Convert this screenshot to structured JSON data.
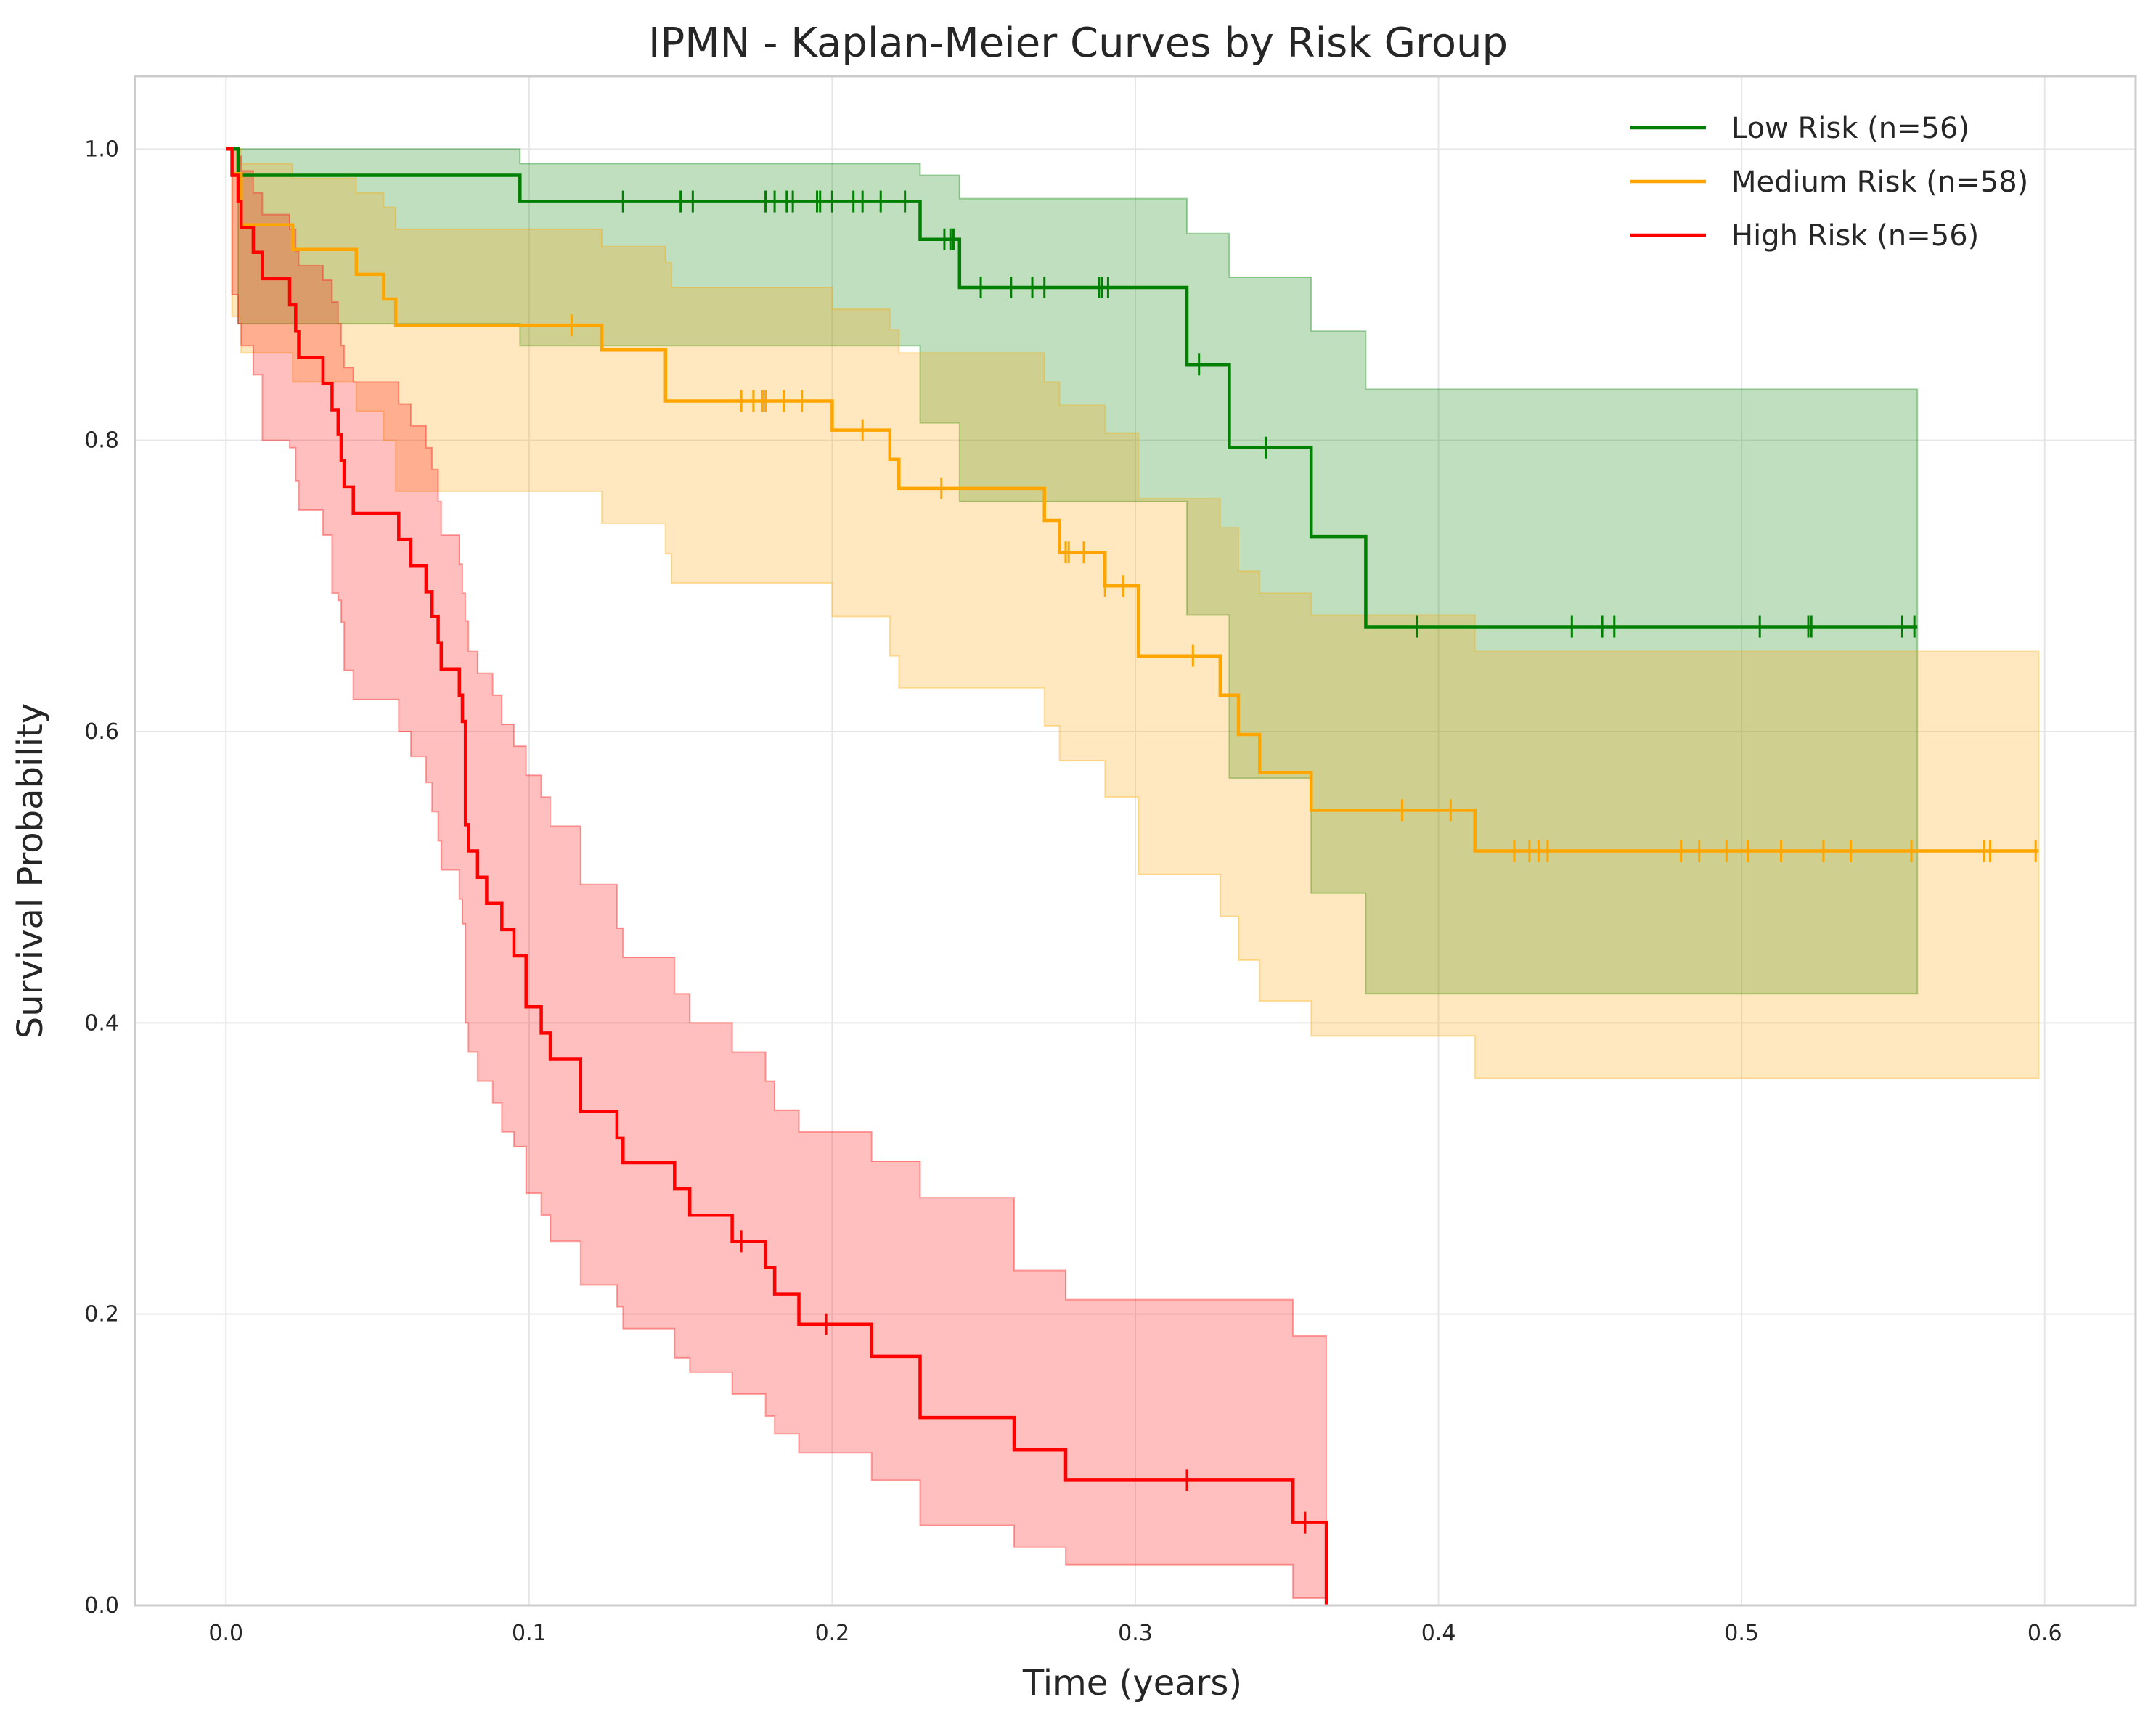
{
  "chart_data": {
    "type": "line",
    "subtype": "kaplan-meier",
    "title": "IPMN - Kaplan-Meier Curves by Risk Group",
    "xlabel": "Time (years)",
    "ylabel": "Survival Probability",
    "xlim": [
      -0.03,
      0.63
    ],
    "ylim": [
      0.0,
      1.05
    ],
    "xticks": [
      0.0,
      0.1,
      0.2,
      0.3,
      0.4,
      0.5,
      0.6
    ],
    "xtick_labels": [
      "0.0",
      "0.1",
      "0.2",
      "0.3",
      "0.4",
      "0.5",
      "0.6"
    ],
    "yticks": [
      0.0,
      0.2,
      0.4,
      0.6,
      0.8,
      1.0
    ],
    "ytick_labels": [
      "0.0",
      "0.2",
      "0.4",
      "0.6",
      "0.8",
      "1.0"
    ],
    "grid": true,
    "legend_position": "top-right",
    "series": [
      {
        "name": "Low Risk (n=56)",
        "color": "#008000",
        "x": [
          0,
          0.004,
          0.097,
          0.229,
          0.242,
          0.317,
          0.331,
          0.358,
          0.376,
          0.558
        ],
        "y": [
          1.0,
          0.982,
          0.964,
          0.938,
          0.905,
          0.852,
          0.795,
          0.734,
          0.672,
          0.672
        ],
        "ci_x": [
          0,
          0.004,
          0.097,
          0.135,
          0.229,
          0.242,
          0.317,
          0.331,
          0.358,
          0.376,
          0.558
        ],
        "ci_lower": [
          1.0,
          0.88,
          0.865,
          0.865,
          0.812,
          0.758,
          0.68,
          0.568,
          0.489,
          0.42,
          0.42
        ],
        "ci_upper": [
          1.0,
          1.0,
          0.99,
          0.99,
          0.982,
          0.966,
          0.942,
          0.912,
          0.875,
          0.835,
          0.835
        ],
        "censored_x": [
          0.131,
          0.15,
          0.154,
          0.178,
          0.181,
          0.185,
          0.187,
          0.195,
          0.196,
          0.2,
          0.207,
          0.21,
          0.216,
          0.224,
          0.237,
          0.239,
          0.24,
          0.249,
          0.259,
          0.266,
          0.27,
          0.288,
          0.289,
          0.291,
          0.321,
          0.343,
          0.393,
          0.444,
          0.454,
          0.458,
          0.506,
          0.522,
          0.523,
          0.553,
          0.557
        ]
      },
      {
        "name": "Medium Risk (n=58)",
        "color": "#ffa500",
        "x": [
          0,
          0.002,
          0.005,
          0.022,
          0.043,
          0.052,
          0.056,
          0.124,
          0.145,
          0.145,
          0.2,
          0.219,
          0.222,
          0.27,
          0.275,
          0.29,
          0.301,
          0.328,
          0.334,
          0.341,
          0.358,
          0.412,
          0.598
        ],
        "y": [
          1.0,
          0.983,
          0.948,
          0.931,
          0.914,
          0.897,
          0.879,
          0.862,
          0.845,
          0.827,
          0.807,
          0.787,
          0.767,
          0.745,
          0.723,
          0.7,
          0.652,
          0.625,
          0.598,
          0.572,
          0.546,
          0.518,
          0.518
        ],
        "ci_x": [
          0,
          0.002,
          0.005,
          0.022,
          0.043,
          0.052,
          0.056,
          0.124,
          0.145,
          0.147,
          0.2,
          0.219,
          0.222,
          0.27,
          0.275,
          0.29,
          0.301,
          0.328,
          0.334,
          0.341,
          0.358,
          0.412,
          0.598
        ],
        "ci_lower": [
          1.0,
          0.885,
          0.86,
          0.84,
          0.82,
          0.8,
          0.765,
          0.743,
          0.722,
          0.702,
          0.679,
          0.652,
          0.63,
          0.604,
          0.58,
          0.555,
          0.502,
          0.473,
          0.443,
          0.415,
          0.391,
          0.362,
          0.362
        ],
        "ci_upper": [
          1.0,
          1.0,
          0.99,
          0.98,
          0.97,
          0.96,
          0.945,
          0.933,
          0.922,
          0.905,
          0.89,
          0.876,
          0.86,
          0.84,
          0.824,
          0.805,
          0.76,
          0.74,
          0.71,
          0.695,
          0.68,
          0.655,
          0.655
        ],
        "censored_x": [
          0.114,
          0.17,
          0.174,
          0.177,
          0.178,
          0.184,
          0.19,
          0.21,
          0.236,
          0.277,
          0.278,
          0.283,
          0.29,
          0.296,
          0.319,
          0.388,
          0.404,
          0.425,
          0.43,
          0.433,
          0.436,
          0.48,
          0.486,
          0.495,
          0.502,
          0.513,
          0.527,
          0.536,
          0.556,
          0.58,
          0.582,
          0.597
        ]
      },
      {
        "name": "High Risk (n=56)",
        "color": "#ff0000",
        "x": [
          0,
          0.002,
          0.004,
          0.005,
          0.009,
          0.012,
          0.019,
          0.021,
          0.023,
          0.024,
          0.031,
          0.032,
          0.035,
          0.036,
          0.037,
          0.038,
          0.039,
          0.042,
          0.057,
          0.061,
          0.066,
          0.068,
          0.07,
          0.071,
          0.077,
          0.078,
          0.079,
          0.08,
          0.083,
          0.086,
          0.088,
          0.091,
          0.095,
          0.099,
          0.104,
          0.107,
          0.117,
          0.129,
          0.131,
          0.137,
          0.148,
          0.153,
          0.167,
          0.174,
          0.178,
          0.181,
          0.189,
          0.199,
          0.213,
          0.229,
          0.26,
          0.277,
          0.352,
          0.355,
          0.363
        ],
        "y": [
          1.0,
          0.982,
          0.964,
          0.946,
          0.929,
          0.911,
          0.911,
          0.893,
          0.875,
          0.857,
          0.857,
          0.839,
          0.821,
          0.821,
          0.804,
          0.786,
          0.768,
          0.75,
          0.732,
          0.714,
          0.696,
          0.679,
          0.661,
          0.643,
          0.625,
          0.607,
          0.536,
          0.518,
          0.5,
          0.482,
          0.482,
          0.464,
          0.446,
          0.411,
          0.393,
          0.375,
          0.339,
          0.321,
          0.304,
          0.304,
          0.286,
          0.268,
          0.25,
          0.25,
          0.232,
          0.214,
          0.193,
          0.193,
          0.171,
          0.129,
          0.107,
          0.086,
          0.057,
          0.057,
          0.0
        ],
        "ci_x": [
          0,
          0.002,
          0.004,
          0.005,
          0.009,
          0.012,
          0.021,
          0.023,
          0.024,
          0.032,
          0.035,
          0.037,
          0.038,
          0.039,
          0.042,
          0.057,
          0.061,
          0.066,
          0.068,
          0.07,
          0.071,
          0.077,
          0.078,
          0.079,
          0.08,
          0.083,
          0.088,
          0.091,
          0.095,
          0.099,
          0.104,
          0.107,
          0.117,
          0.129,
          0.131,
          0.148,
          0.153,
          0.167,
          0.178,
          0.181,
          0.189,
          0.213,
          0.229,
          0.26,
          0.277,
          0.352,
          0.363
        ],
        "ci_lower": [
          1.0,
          0.9,
          0.88,
          0.865,
          0.845,
          0.8,
          0.795,
          0.772,
          0.752,
          0.735,
          0.695,
          0.69,
          0.675,
          0.642,
          0.622,
          0.6,
          0.583,
          0.565,
          0.545,
          0.525,
          0.505,
          0.485,
          0.468,
          0.4,
          0.38,
          0.36,
          0.345,
          0.325,
          0.315,
          0.283,
          0.268,
          0.25,
          0.22,
          0.205,
          0.19,
          0.17,
          0.16,
          0.145,
          0.13,
          0.118,
          0.105,
          0.086,
          0.055,
          0.04,
          0.028,
          0.005,
          0.0
        ],
        "ci_upper": [
          1.0,
          1.0,
          0.995,
          0.985,
          0.97,
          0.955,
          0.945,
          0.93,
          0.92,
          0.91,
          0.895,
          0.88,
          0.865,
          0.85,
          0.84,
          0.825,
          0.81,
          0.795,
          0.78,
          0.758,
          0.735,
          0.715,
          0.695,
          0.676,
          0.655,
          0.64,
          0.625,
          0.605,
          0.59,
          0.57,
          0.555,
          0.535,
          0.495,
          0.465,
          0.445,
          0.42,
          0.4,
          0.38,
          0.36,
          0.34,
          0.325,
          0.305,
          0.28,
          0.23,
          0.21,
          0.185,
          0.155
        ],
        "censored_x": [
          0.17,
          0.198,
          0.317,
          0.356
        ]
      }
    ]
  }
}
